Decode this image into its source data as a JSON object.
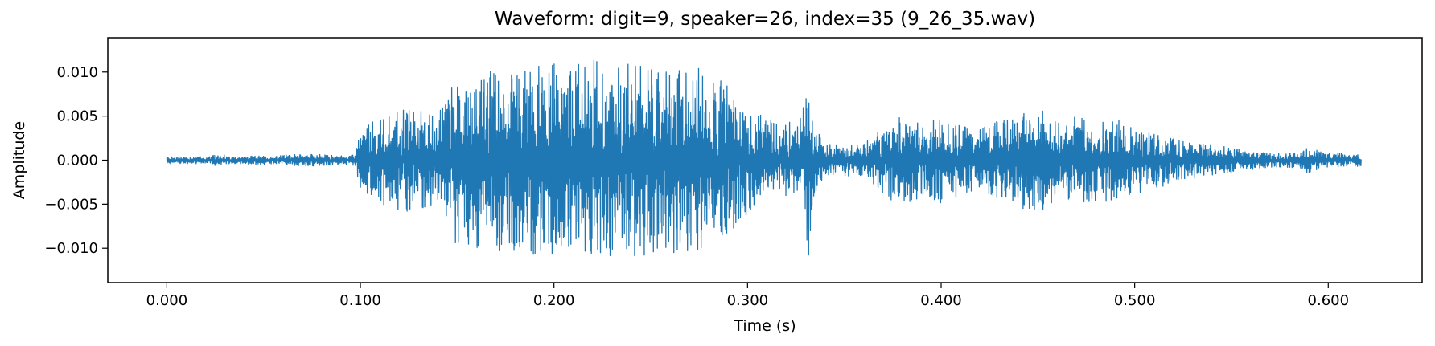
{
  "chart_data": {
    "type": "line",
    "title": "Waveform: digit=9, speaker=26, index=35  (9_26_35.wav)",
    "xlabel": "Time (s)",
    "ylabel": "Amplitude",
    "xlim": [
      -0.0305,
      0.6485
    ],
    "ylim": [
      -0.0139,
      0.0139
    ],
    "xticks": [
      0.0,
      0.1,
      0.2,
      0.3,
      0.4,
      0.5,
      0.6
    ],
    "xtick_labels": [
      "0.000",
      "0.100",
      "0.200",
      "0.300",
      "0.400",
      "0.500",
      "0.600"
    ],
    "yticks": [
      -0.01,
      -0.005,
      0.0,
      0.005,
      0.01
    ],
    "ytick_labels": [
      "−0.010",
      "−0.005",
      "0.000",
      "0.005",
      "0.010"
    ],
    "grid": false,
    "color": "#1f77b4",
    "duration_s": 0.617,
    "envelope": {
      "t": [
        0.0,
        0.022,
        0.027,
        0.032,
        0.05,
        0.075,
        0.09,
        0.097,
        0.1,
        0.11,
        0.125,
        0.14,
        0.146,
        0.16,
        0.18,
        0.2,
        0.22,
        0.24,
        0.26,
        0.28,
        0.3,
        0.31,
        0.32,
        0.328,
        0.332,
        0.334,
        0.34,
        0.36,
        0.37,
        0.38,
        0.39,
        0.4,
        0.42,
        0.44,
        0.45,
        0.46,
        0.48,
        0.5,
        0.52,
        0.55,
        0.57,
        0.58,
        0.59,
        0.6,
        0.617
      ],
      "amp": [
        0.0004,
        0.0004,
        0.0008,
        0.0004,
        0.0005,
        0.0007,
        0.0005,
        0.0006,
        0.0035,
        0.005,
        0.006,
        0.005,
        0.0095,
        0.01,
        0.0105,
        0.011,
        0.0115,
        0.011,
        0.0105,
        0.0105,
        0.0065,
        0.0045,
        0.0045,
        0.005,
        0.012,
        0.0045,
        0.0018,
        0.0018,
        0.0042,
        0.0055,
        0.0042,
        0.005,
        0.0035,
        0.0055,
        0.0062,
        0.0048,
        0.005,
        0.0042,
        0.0025,
        0.0014,
        0.0008,
        0.0008,
        0.0015,
        0.0008,
        0.0007
      ]
    }
  }
}
